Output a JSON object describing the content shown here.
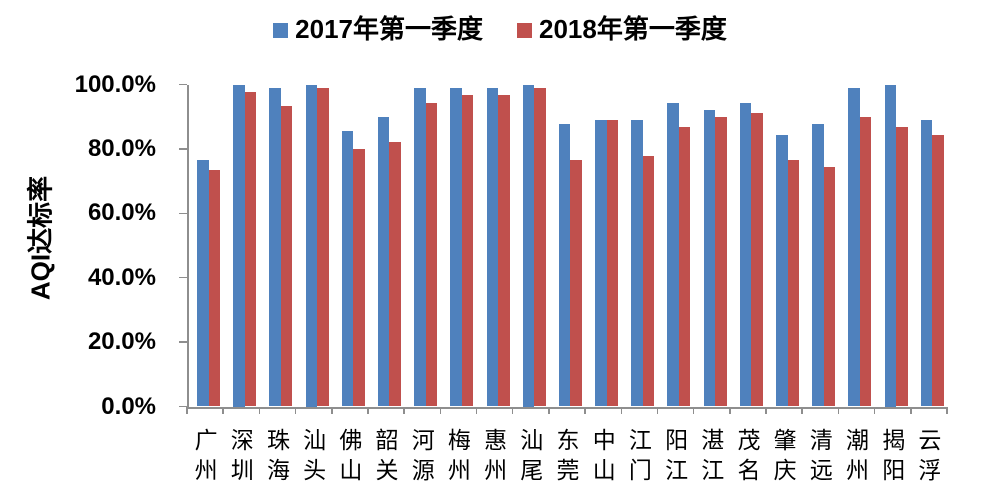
{
  "chart_data": {
    "type": "bar",
    "title": "",
    "ylabel": "AQI达标率",
    "xlabel": "",
    "unit": "percent",
    "ylim": [
      0,
      100
    ],
    "y_tick_labels": [
      "100.0%",
      "80.0%",
      "60.0%",
      "40.0%",
      "20.0%",
      "0.0%"
    ],
    "grid": false,
    "legend_position": "top-center",
    "axis_color": "#8e8e8e",
    "text_color": "#000000",
    "categories": [
      "广州",
      "深圳",
      "珠海",
      "汕头",
      "佛山",
      "韶关",
      "河源",
      "梅州",
      "惠州",
      "汕尾",
      "东莞",
      "中山",
      "江门",
      "阳江",
      "湛江",
      "茂名",
      "肇庆",
      "清远",
      "潮州",
      "揭阳",
      "云浮"
    ],
    "series": [
      {
        "name": "2017年第一季度",
        "color": "#4F81BD",
        "values": [
          76.7,
          100.0,
          98.9,
          100.0,
          85.6,
          90.0,
          98.9,
          98.9,
          98.9,
          100.0,
          87.8,
          88.9,
          88.9,
          94.4,
          92.2,
          94.4,
          84.4,
          87.8,
          98.9,
          100.0,
          88.9
        ]
      },
      {
        "name": "2018年第一季度",
        "color": "#C0504D",
        "values": [
          73.3,
          97.8,
          93.3,
          98.9,
          80.0,
          82.2,
          94.4,
          96.7,
          96.7,
          98.9,
          76.7,
          88.9,
          77.8,
          86.7,
          90.0,
          91.1,
          76.7,
          74.4,
          90.0,
          86.7,
          84.4
        ]
      }
    ]
  }
}
